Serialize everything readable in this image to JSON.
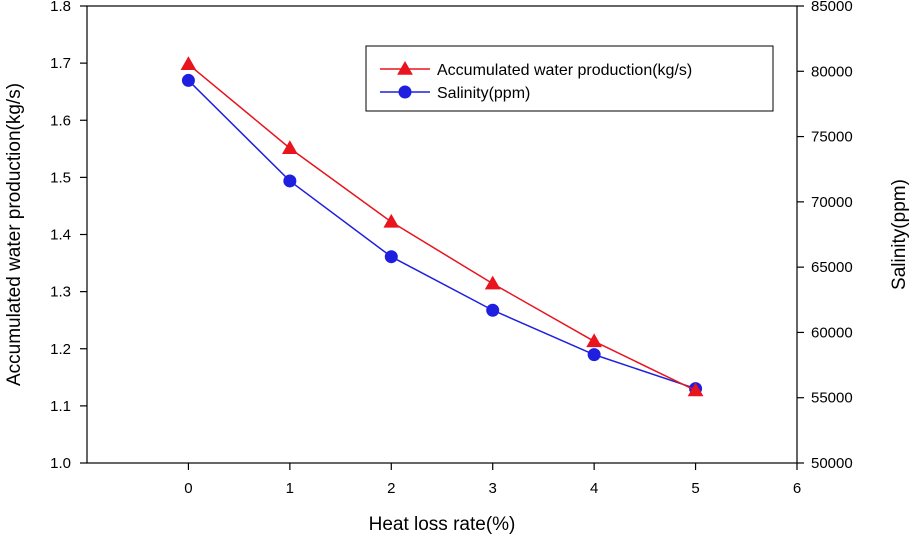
{
  "chart_data": {
    "type": "line",
    "title": "",
    "xlabel": "Heat loss rate(%)",
    "ylabel": "Accumulated water production(kg/s)",
    "y2label": "Salinity(ppm)",
    "xlim": [
      -1,
      6
    ],
    "ylim": [
      1.0,
      1.8
    ],
    "y2lim": [
      50000,
      85000
    ],
    "xticks": [
      "0",
      "1",
      "2",
      "3",
      "4",
      "5",
      "6"
    ],
    "yticks": [
      "1.0",
      "1.1",
      "1.2",
      "1.3",
      "1.4",
      "1.5",
      "1.6",
      "1.7",
      "1.8"
    ],
    "y2ticks": [
      "50000",
      "55000",
      "60000",
      "65000",
      "70000",
      "75000",
      "80000",
      "85000"
    ],
    "grid": false,
    "legend_position": "top-right",
    "series": [
      {
        "name": "Accumulated water production(kg/s)",
        "axis": "left",
        "color": "#e8141e",
        "marker": "triangle",
        "x": [
          0,
          1,
          2,
          3,
          4,
          5
        ],
        "values": [
          1.698,
          1.551,
          1.422,
          1.314,
          1.213,
          1.127
        ]
      },
      {
        "name": "Salinity(ppm)",
        "axis": "right",
        "color": "#1f1fe0",
        "marker": "circle",
        "x": [
          0,
          1,
          2,
          3,
          4,
          5
        ],
        "values": [
          79300,
          71600,
          65800,
          61700,
          58300,
          55700
        ]
      }
    ]
  }
}
